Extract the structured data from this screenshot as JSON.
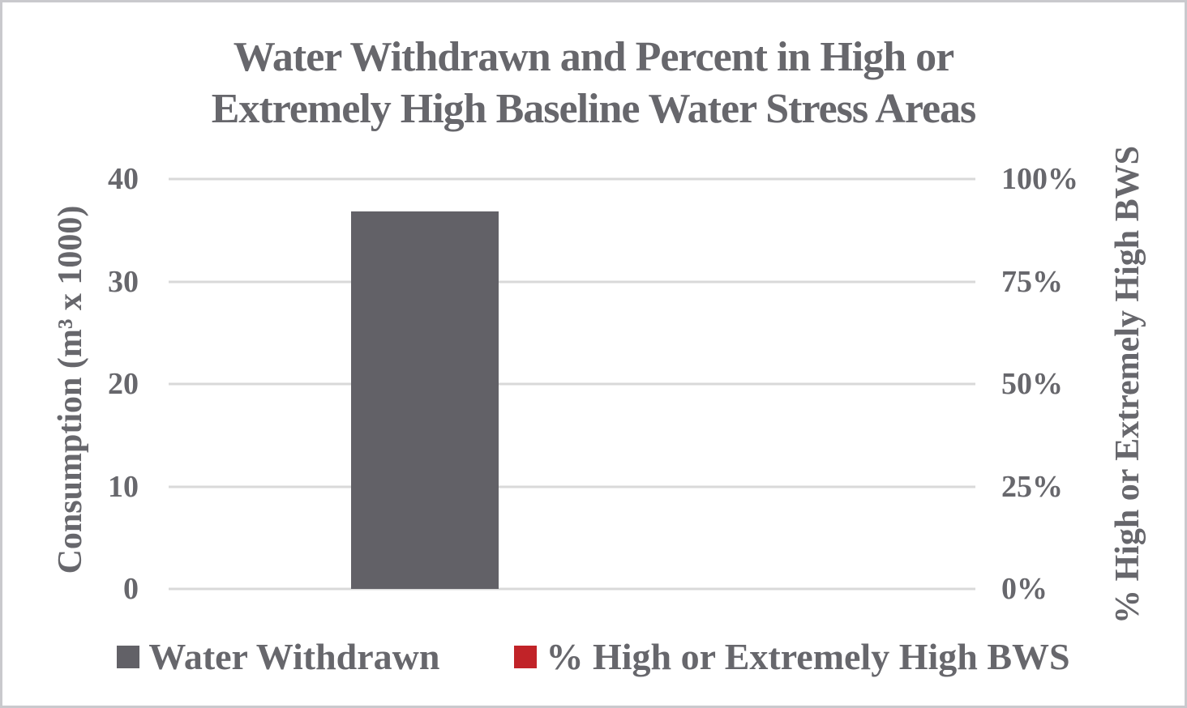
{
  "title": {
    "lines": [
      "Water Withdrawn and Percent in High or",
      "Extremely High Baseline Water Stress Areas"
    ]
  },
  "left_axis": {
    "label": "Consumption (m³ x 1000)",
    "ticks": [
      "40",
      "30",
      "20",
      "10",
      "0"
    ]
  },
  "right_axis": {
    "label": "% High or Extremely High BWS",
    "ticks": [
      "100%",
      "75%",
      "50%",
      "25%",
      "0%"
    ]
  },
  "legend": {
    "items": [
      {
        "label": "Water Withdrawn",
        "color": "#626167"
      },
      {
        "label": "% High or Extremely High BWS",
        "color": "#c12328"
      }
    ]
  },
  "colors": {
    "text": "#67676c",
    "bar_gray": "#626167",
    "accent_red": "#c12328",
    "gridline": "#d9d9d9",
    "frame_border": "#c9c9cd",
    "background": "#ffffff"
  },
  "chart_data": {
    "type": "bar",
    "title": "Water Withdrawn and Percent in High or Extremely High Baseline Water Stress Areas",
    "categories": [
      ""
    ],
    "series": [
      {
        "name": "Water Withdrawn",
        "axis": "left",
        "values": [
          36.8
        ],
        "color": "#626167"
      },
      {
        "name": "% High or Extremely High BWS",
        "axis": "right",
        "values": [
          0
        ],
        "color": "#c12328"
      }
    ],
    "ylabel_left": "Consumption (m³ x 1000)",
    "ylabel_right": "% High or Extremely High BWS",
    "ylim_left": [
      0,
      40
    ],
    "ylim_right_percent": [
      0,
      100
    ],
    "yticks_left": [
      0,
      10,
      20,
      30,
      40
    ],
    "yticks_right_percent": [
      0,
      25,
      50,
      75,
      100
    ],
    "grid": true,
    "legend_position": "bottom"
  }
}
